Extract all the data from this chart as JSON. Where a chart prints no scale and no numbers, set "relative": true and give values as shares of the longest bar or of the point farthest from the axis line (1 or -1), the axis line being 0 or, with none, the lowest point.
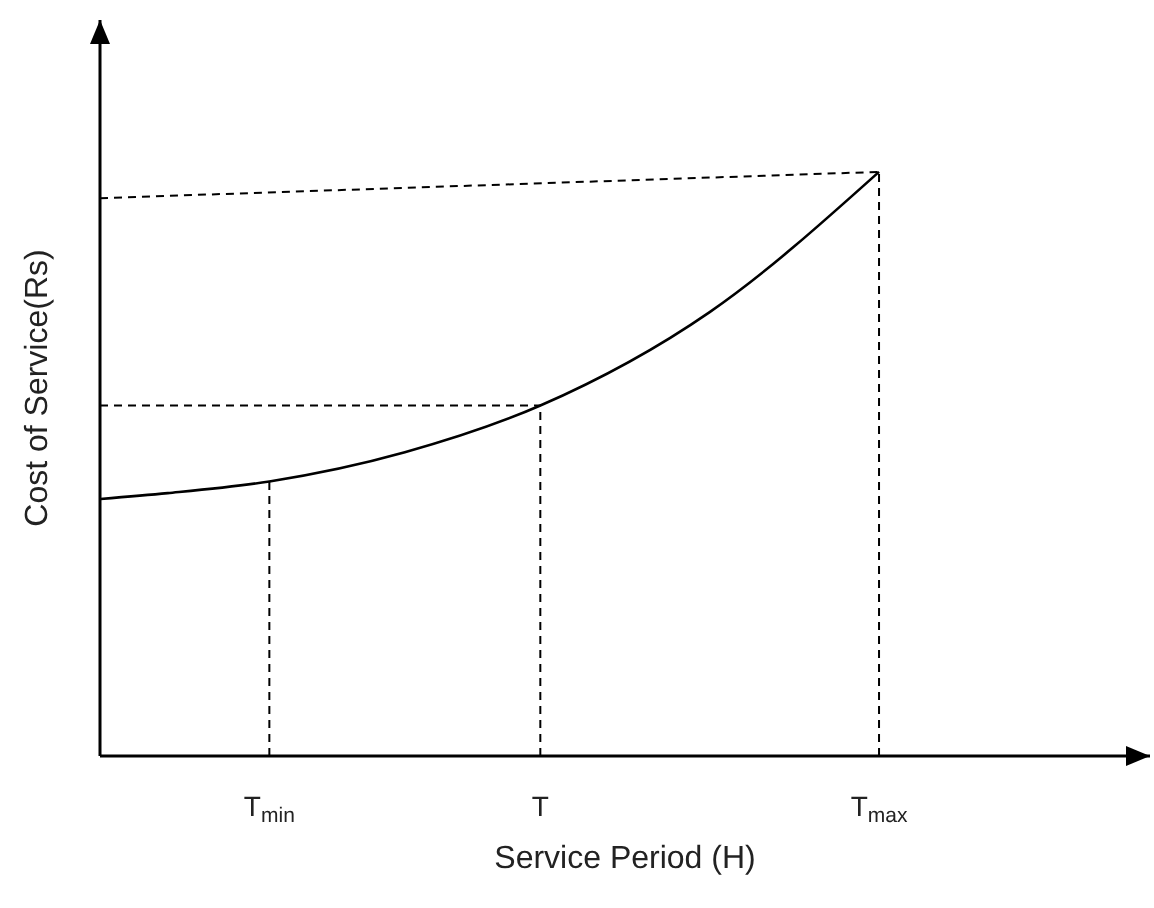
{
  "chart_data": {
    "type": "line",
    "xlabel": "Service Period (H)",
    "ylabel": "Cost of Service(Rs)",
    "relative": true,
    "categories": [
      null,
      null,
      null,
      null,
      null,
      "T$_{min}$",
      null,
      null,
      null,
      null,
      null,
      null,
      null,
      "T",
      null,
      null,
      null,
      null,
      null,
      null,
      null,
      null,
      null,
      "T$_{max}$",
      null,
      null,
      null,
      null,
      null,
      null,
      null,
      null
    ],
    "grid": false,
    "legend": false,
    "marker": "none",
    "series": [
      {
        "color": "#000000",
        "line_style": "solid",
        "values": [
          0.44,
          null,
          0.45,
          null,
          null,
          0.47,
          null,
          null,
          null,
          0.52,
          null,
          null,
          null,
          0.6,
          null,
          null,
          null,
          null,
          0.76,
          null,
          null,
          null,
          null,
          1,
          null,
          null,
          null,
          null,
          null,
          null,
          null,
          null
        ]
      },
      {
        "color": "#000000",
        "line_style": "dashed",
        "x": [
          "T$_{min}$",
          "T$_{min}$"
        ],
        "values": [
          0,
          0.47
        ]
      },
      {
        "color": "#000000",
        "line_style": "dashed",
        "x": [
          "T",
          "T"
        ],
        "values": [
          0,
          0.6
        ]
      },
      {
        "color": "#000000",
        "line_style": "dashed",
        "x": [
          "T$_{max}$",
          "T$_{max}$"
        ],
        "values": [
          0,
          1
        ]
      },
      {
        "color": "#000000",
        "line_style": "dashed",
        "values": [
          0.6,
          null,
          null,
          null,
          null,
          null,
          null,
          null,
          null,
          null,
          null,
          null,
          null,
          0.6,
          null,
          null,
          null,
          null,
          null,
          null,
          null,
          null,
          null,
          null,
          null,
          null,
          null,
          null,
          null,
          null,
          null,
          null
        ]
      },
      {
        "color": "#000000",
        "line_style": "dashed",
        "values": [
          0.955,
          null,
          null,
          null,
          null,
          null,
          null,
          null,
          null,
          null,
          null,
          null,
          null,
          null,
          null,
          null,
          null,
          null,
          null,
          null,
          null,
          null,
          null,
          1,
          null,
          null,
          null,
          null,
          null,
          null,
          null,
          null
        ]
      }
    ]
  }
}
